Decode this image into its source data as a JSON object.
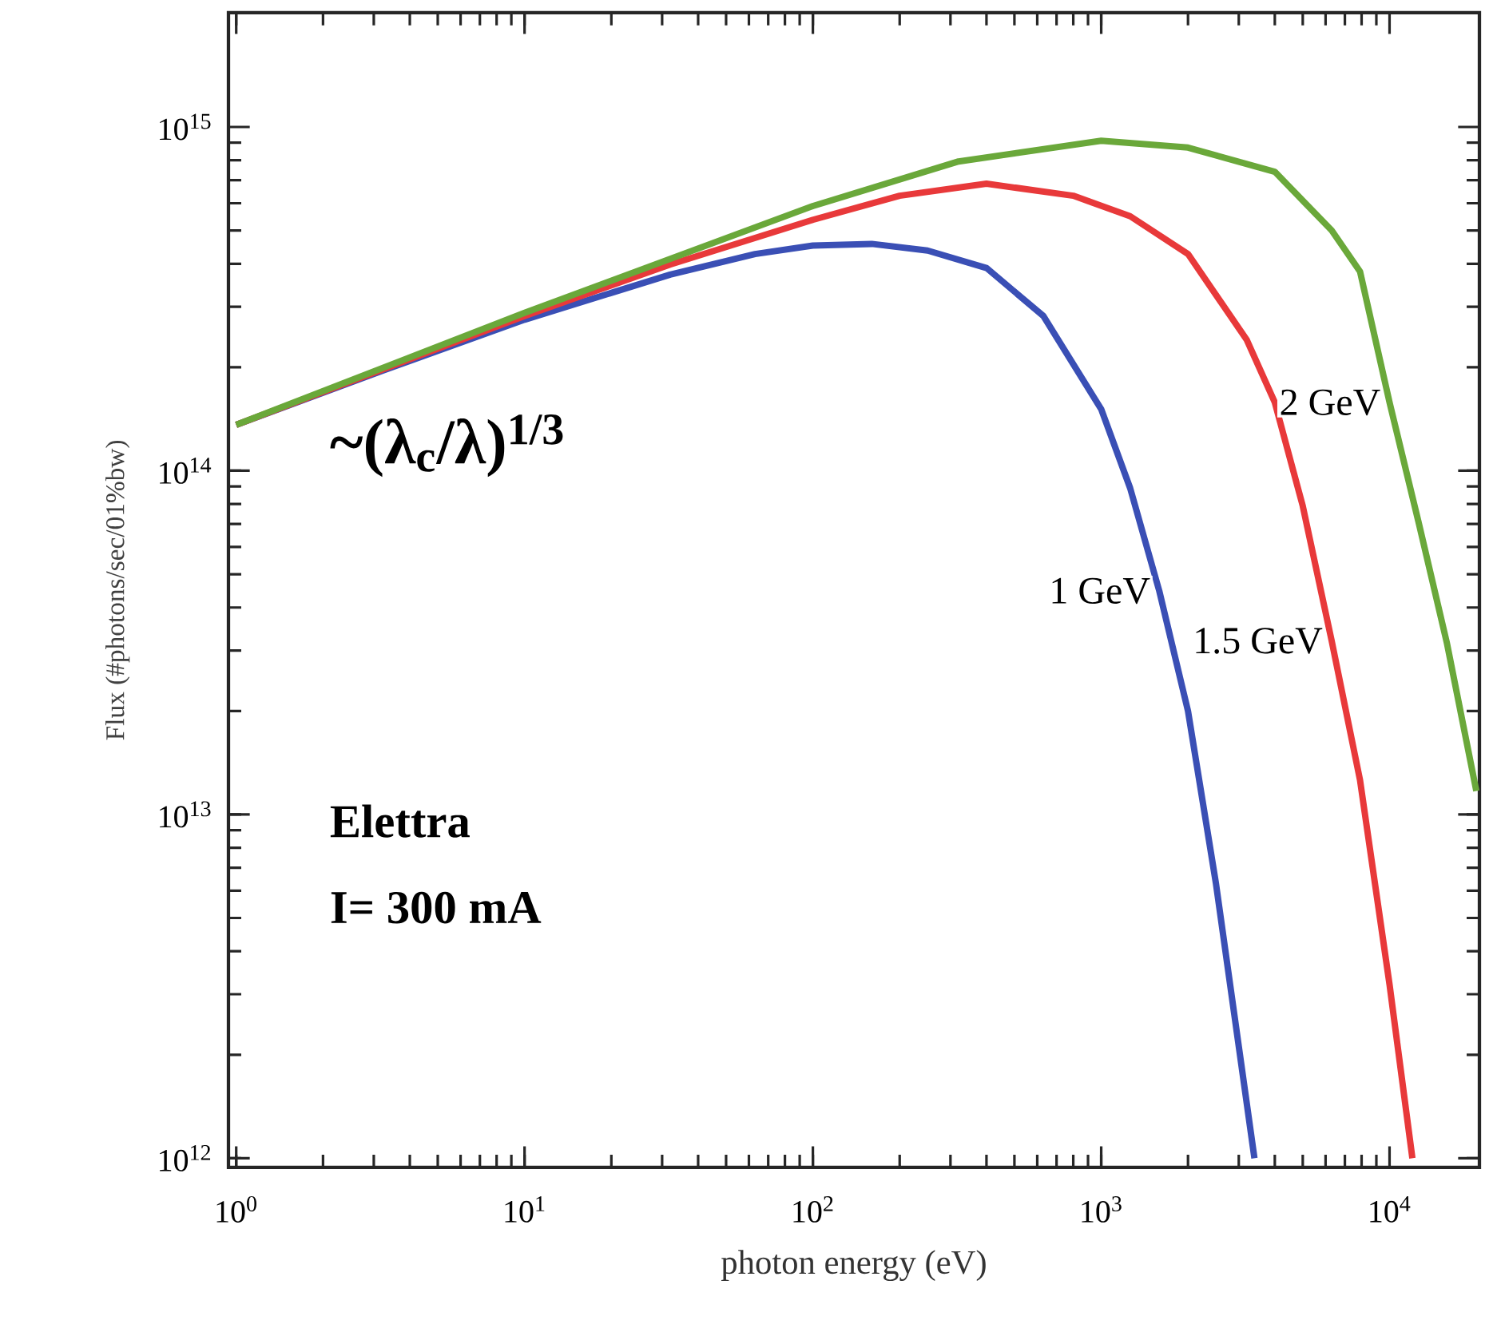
{
  "chart_data": {
    "type": "line",
    "xlabel": "photon energy (eV)",
    "ylabel": "Flux (#photons/sec/01%bw)",
    "log": "xy",
    "xlim": [
      0.94,
      20500
    ],
    "ylim": [
      940000000000.0,
      2150000000000000.0
    ],
    "xticks": [
      {
        "value": 1,
        "label": "10$^{0}$"
      },
      {
        "value": 10,
        "label": "10$^{1}$"
      },
      {
        "value": 100,
        "label": "10$^{2}$"
      },
      {
        "value": 1000,
        "label": "10$^{3}$"
      },
      {
        "value": 10000,
        "label": "10$^{4}$"
      }
    ],
    "yticks": [
      {
        "value": 1000000000000.0,
        "label": "10$^{12}$"
      },
      {
        "value": 10000000000000.0,
        "label": "10$^{13}$"
      },
      {
        "value": 100000000000000.0,
        "label": "10$^{14}$"
      },
      {
        "value": 1000000000000000.0,
        "label": "10$^{15}$"
      }
    ],
    "annotations": [
      "~(λ$_{c}$/λ)$^{1/3}$",
      "Elettra",
      "I= 300 mA"
    ],
    "series": [
      {
        "name": "1 GeV",
        "color": "#3a4fb5",
        "x": [
          1,
          3.2,
          10,
          32,
          63,
          100,
          160,
          250,
          400,
          630,
          1000,
          1260,
          1590,
          2000,
          2500,
          3400
        ],
        "values": [
          136000000000000.0,
          195000000000000.0,
          275000000000000.0,
          372000000000000.0,
          427000000000000.0,
          452000000000000.0,
          457000000000000.0,
          437000000000000.0,
          389000000000000.0,
          282000000000000.0,
          151000000000000.0,
          89000000000000.0,
          44700000000000.0,
          20000000000000.0,
          6300000000000.0,
          1000000000000.0
        ]
      },
      {
        "name": "1.5 GeV",
        "color": "#e8393a",
        "x": [
          1,
          10,
          32,
          100,
          200,
          400,
          800,
          1260,
          2000,
          3200,
          4000,
          5000,
          6300,
          7900,
          10000,
          12000
        ],
        "values": [
          136000000000000.0,
          282000000000000.0,
          398000000000000.0,
          537000000000000.0,
          631000000000000.0,
          684000000000000.0,
          631000000000000.0,
          550000000000000.0,
          427000000000000.0,
          240000000000000.0,
          158000000000000.0,
          79000000000000.0,
          32000000000000.0,
          12600000000000.0,
          3200000000000.0,
          1000000000000.0
        ]
      },
      {
        "name": "2 GeV",
        "color": "#6aa83a",
        "x": [
          1,
          10,
          100,
          320,
          1000,
          2000,
          4000,
          6300,
          7900,
          10000,
          12600,
          15800,
          20000
        ],
        "values": [
          136000000000000.0,
          288000000000000.0,
          589000000000000.0,
          794000000000000.0,
          912000000000000.0,
          871000000000000.0,
          741000000000000.0,
          500000000000000.0,
          380000000000000.0,
          158000000000000.0,
          71000000000000.0,
          31600000000000.0,
          11700000000000.0
        ]
      }
    ]
  }
}
